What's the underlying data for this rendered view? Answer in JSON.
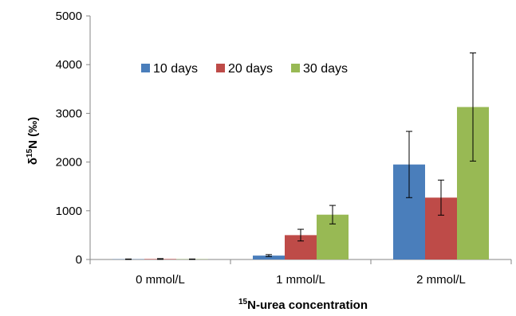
{
  "chart_data": {
    "type": "bar",
    "categories": [
      "0 mmol/L",
      "1 mmol/L",
      "2 mmol/L"
    ],
    "series": [
      {
        "name": "10 days",
        "color": "#4a7ebb",
        "values": [
          5,
          80,
          1950
        ],
        "errors": [
          5,
          20,
          680
        ]
      },
      {
        "name": "20 days",
        "color": "#be4b48",
        "values": [
          10,
          500,
          1270
        ],
        "errors": [
          8,
          120,
          360
        ]
      },
      {
        "name": "30 days",
        "color": "#98b954",
        "values": [
          5,
          920,
          3130
        ],
        "errors": [
          5,
          190,
          1110
        ]
      }
    ],
    "xlabel_sup": "15",
    "xlabel_main": "N-urea concentration",
    "ylabel_prefix": "δ",
    "ylabel_sup": "15",
    "ylabel_main": "N (‰)",
    "ylim": [
      0,
      5000
    ],
    "yticks": [
      "0",
      "1000",
      "2000",
      "3000",
      "4000",
      "5000"
    ],
    "legend_position": "top-left",
    "grid": false
  }
}
